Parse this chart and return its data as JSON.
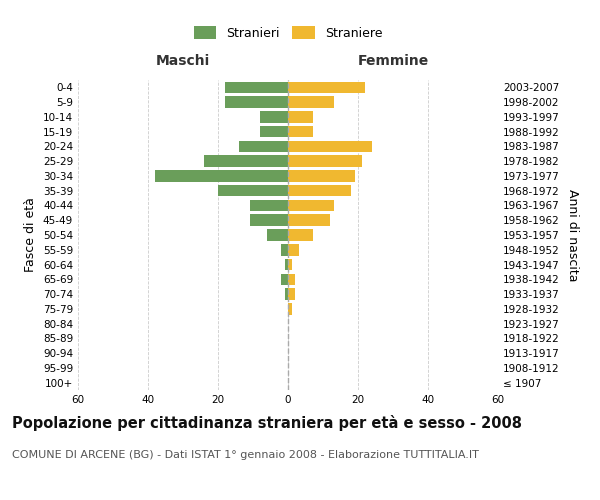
{
  "age_groups": [
    "100+",
    "95-99",
    "90-94",
    "85-89",
    "80-84",
    "75-79",
    "70-74",
    "65-69",
    "60-64",
    "55-59",
    "50-54",
    "45-49",
    "40-44",
    "35-39",
    "30-34",
    "25-29",
    "20-24",
    "15-19",
    "10-14",
    "5-9",
    "0-4"
  ],
  "birth_years": [
    "≤ 1907",
    "1908-1912",
    "1913-1917",
    "1918-1922",
    "1923-1927",
    "1928-1932",
    "1933-1937",
    "1938-1942",
    "1943-1947",
    "1948-1952",
    "1953-1957",
    "1958-1962",
    "1963-1967",
    "1968-1972",
    "1973-1977",
    "1978-1982",
    "1983-1987",
    "1988-1992",
    "1993-1997",
    "1998-2002",
    "2003-2007"
  ],
  "maschi": [
    0,
    0,
    0,
    0,
    0,
    0,
    1,
    2,
    1,
    2,
    6,
    11,
    11,
    20,
    38,
    24,
    14,
    8,
    8,
    18,
    18
  ],
  "femmine": [
    0,
    0,
    0,
    0,
    0,
    1,
    2,
    2,
    1,
    3,
    7,
    12,
    13,
    18,
    19,
    21,
    24,
    7,
    7,
    13,
    22
  ],
  "maschi_color": "#6a9e5a",
  "femmine_color": "#f0b830",
  "title": "Popolazione per cittadinanza straniera per età e sesso - 2008",
  "subtitle": "COMUNE DI ARCENE (BG) - Dati ISTAT 1° gennaio 2008 - Elaborazione TUTTITALIA.IT",
  "ylabel_left": "Fasce di età",
  "ylabel_right": "Anni di nascita",
  "legend_stranieri": "Stranieri",
  "legend_straniere": "Straniere",
  "maschi_label": "Maschi",
  "femmine_label": "Femmine",
  "xlim": 60,
  "background_color": "#ffffff",
  "grid_color": "#cccccc",
  "dashed_line_color": "#aaaaaa",
  "title_fontsize": 10.5,
  "subtitle_fontsize": 8,
  "axis_label_fontsize": 9,
  "tick_fontsize": 7.5,
  "legend_fontsize": 9
}
